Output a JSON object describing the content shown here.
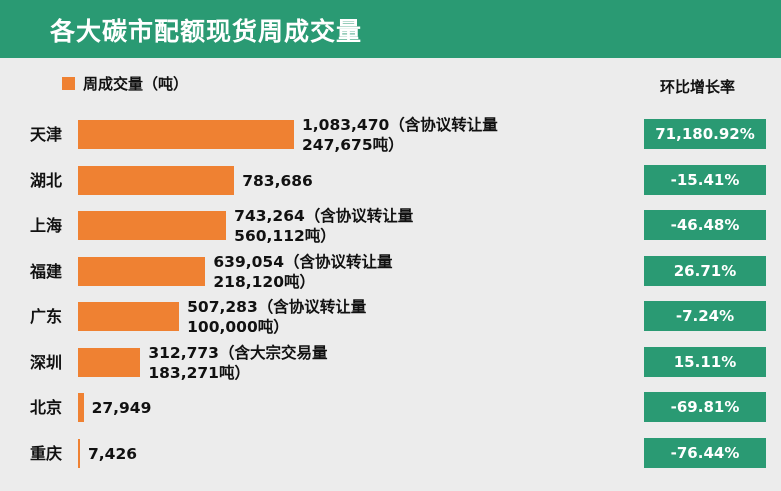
{
  "title": "各大碳市配额现货周成交量",
  "legend_label": "周成交量（吨）",
  "growth_header": "环比增长率",
  "colors": {
    "header": "#2a9a73",
    "bar": "#ef8132",
    "growth_box": "#2a9a73",
    "background": "#ececec"
  },
  "chart_data": {
    "type": "bar",
    "orientation": "horizontal",
    "categories": [
      "天津",
      "湖北",
      "上海",
      "福建",
      "广东",
      "深圳",
      "北京",
      "重庆"
    ],
    "series": [
      {
        "name": "周成交量（吨）",
        "values": [
          1083470,
          783686,
          743264,
          639054,
          507283,
          312773,
          27949,
          7426
        ]
      }
    ],
    "value_labels": [
      [
        "1,083,470（含协议转让量",
        "247,675吨）"
      ],
      [
        "783,686"
      ],
      [
        "743,264（含协议转让量",
        "560,112吨）"
      ],
      [
        "639,054（含协议转让量",
        "218,120吨）"
      ],
      [
        "507,283（含协议转让量",
        "100,000吨）"
      ],
      [
        "312,773（含大宗交易量",
        "183,271吨）"
      ],
      [
        "27,949"
      ],
      [
        "7,426"
      ]
    ],
    "growth_rates": [
      "71,180.92%",
      "-15.41%",
      "-46.48%",
      "26.71%",
      "-7.24%",
      "15.11%",
      "-69.81%",
      "-76.44%"
    ]
  }
}
